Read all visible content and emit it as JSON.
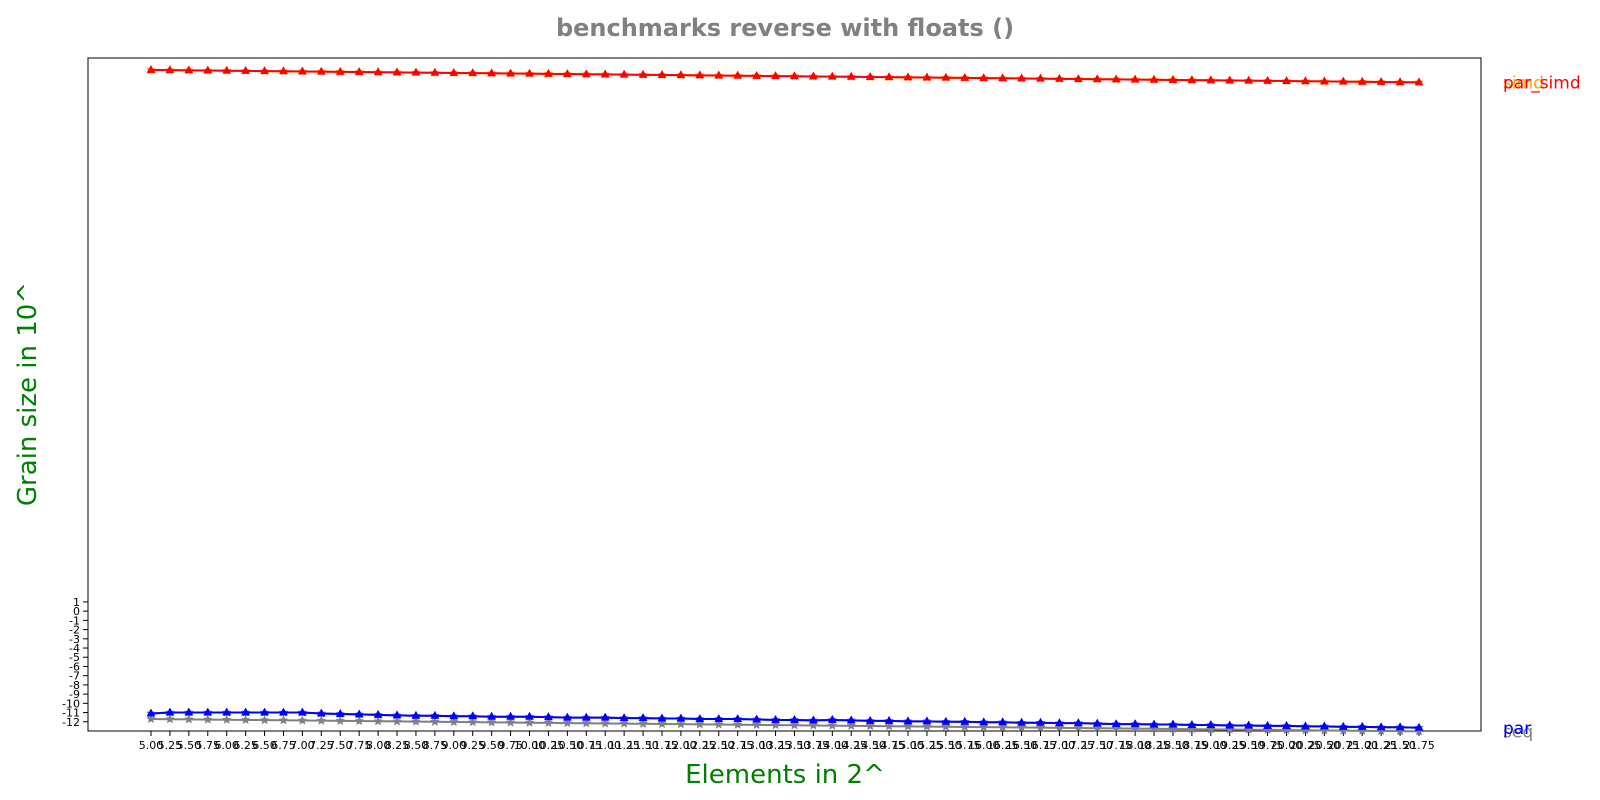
{
  "chart_data": {
    "type": "line",
    "title": "benchmarks reverse with floats  ()",
    "xlabel": "Elements in 2^",
    "ylabel": "Grain size in 10^",
    "x": [
      5.0,
      5.25,
      5.5,
      5.75,
      6.0,
      6.25,
      6.5,
      6.75,
      7.0,
      7.25,
      7.5,
      7.75,
      8.0,
      8.25,
      8.5,
      8.75,
      9.0,
      9.25,
      9.5,
      9.75,
      10.0,
      10.25,
      10.5,
      10.75,
      11.0,
      11.25,
      11.5,
      11.75,
      12.0,
      12.25,
      12.5,
      12.75,
      13.0,
      13.25,
      13.5,
      13.75,
      14.0,
      14.25,
      14.5,
      14.75,
      15.0,
      15.25,
      15.5,
      15.75,
      16.0,
      16.25,
      16.5,
      16.75,
      17.0,
      17.25,
      17.5,
      17.75,
      18.0,
      18.25,
      18.5,
      18.75,
      19.0,
      19.25,
      19.5,
      19.75,
      20.0,
      20.25,
      20.5,
      20.75,
      21.0,
      21.25,
      21.5,
      21.75
    ],
    "xticklabels": [
      "5.00",
      "5.25",
      "5.50",
      "5.75",
      "6.00",
      "6.25",
      "6.50",
      "6.75",
      "7.00",
      "7.25",
      "7.50",
      "7.75",
      "8.00",
      "8.25",
      "8.50",
      "8.75",
      "9.00",
      "9.25",
      "9.50",
      "9.75",
      "10.00",
      "10.25",
      "10.50",
      "10.75",
      "11.00",
      "11.25",
      "11.50",
      "11.75",
      "12.00",
      "12.25",
      "12.50",
      "12.75",
      "13.00",
      "13.25",
      "13.50",
      "13.75",
      "14.00",
      "14.25",
      "14.50",
      "14.75",
      "15.00",
      "15.25",
      "15.50",
      "15.75",
      "16.00",
      "16.25",
      "16.50",
      "16.75",
      "17.00",
      "17.25",
      "17.50",
      "17.75",
      "18.00",
      "18.25",
      "18.50",
      "18.75",
      "19.00",
      "19.25",
      "19.50",
      "19.75",
      "20.00",
      "20.25",
      "20.50",
      "20.75",
      "21.00",
      "21.25",
      "21.50",
      "21.75"
    ],
    "yticklabels": [
      "-12",
      "-11",
      "-10",
      "-9",
      "-8",
      "-7",
      "-6",
      "-5",
      "-4",
      "-3",
      "-2",
      "-1",
      "0",
      "1"
    ],
    "ylim": [
      -13.0,
      60.0
    ],
    "grid": false,
    "series": [
      {
        "name": "seq",
        "color": "#808080",
        "marker": "star",
        "values": [
          -11.7,
          -11.72,
          -11.74,
          -11.76,
          -11.78,
          -11.8,
          -11.82,
          -11.84,
          -11.86,
          -11.88,
          -11.9,
          -11.92,
          -11.94,
          -11.96,
          -11.98,
          -12.0,
          -12.02,
          -12.04,
          -12.06,
          -12.08,
          -12.1,
          -12.12,
          -12.14,
          -12.16,
          -12.18,
          -12.2,
          -12.22,
          -12.24,
          -12.26,
          -12.28,
          -12.3,
          -12.32,
          -12.34,
          -12.36,
          -12.38,
          -12.4,
          -12.42,
          -12.44,
          -12.46,
          -12.48,
          -12.5,
          -12.52,
          -12.54,
          -12.56,
          -12.58,
          -12.6,
          -12.62,
          -12.64,
          -12.66,
          -12.68,
          -12.7,
          -12.72,
          -12.74,
          -12.76,
          -12.78,
          -12.8,
          -12.82,
          -12.84,
          -12.86,
          -12.88,
          -12.9,
          -12.92,
          -12.94,
          -12.96,
          -12.98,
          -13.0,
          -13.02,
          -13.04
        ]
      },
      {
        "name": "par",
        "color": "#6b6bd6",
        "marker": "star",
        "values": [
          -11.1,
          -11.0,
          -11.0,
          -11.0,
          -11.0,
          -11.0,
          -11.0,
          -11.0,
          -11.0,
          -11.1,
          -11.15,
          -11.2,
          -11.25,
          -11.3,
          -11.35,
          -11.35,
          -11.4,
          -11.4,
          -11.45,
          -11.45,
          -11.45,
          -11.5,
          -11.55,
          -11.55,
          -11.55,
          -11.6,
          -11.6,
          -11.65,
          -11.65,
          -11.7,
          -11.7,
          -11.7,
          -11.75,
          -11.8,
          -11.8,
          -11.85,
          -11.8,
          -11.85,
          -11.9,
          -11.9,
          -11.95,
          -11.95,
          -12.0,
          -12.0,
          -12.05,
          -12.05,
          -12.1,
          -12.1,
          -12.15,
          -12.15,
          -12.2,
          -12.25,
          -12.25,
          -12.3,
          -12.3,
          -12.35,
          -12.35,
          -12.4,
          -12.4,
          -12.45,
          -12.45,
          -12.5,
          -12.5,
          -12.55,
          -12.55,
          -12.6,
          -12.6,
          -12.65
        ]
      },
      {
        "name": "simd",
        "color": "#ffa500",
        "marker": "star",
        "values": [
          58.7,
          58.68,
          58.66,
          58.64,
          58.62,
          58.6,
          58.58,
          58.56,
          58.54,
          58.52,
          58.5,
          58.48,
          58.46,
          58.44,
          58.42,
          58.4,
          58.38,
          58.36,
          58.34,
          58.32,
          58.3,
          58.28,
          58.26,
          58.24,
          58.22,
          58.2,
          58.18,
          58.16,
          58.14,
          58.12,
          58.1,
          58.08,
          58.06,
          58.04,
          58.02,
          58.0,
          57.98,
          57.96,
          57.94,
          57.92,
          57.9,
          57.88,
          57.86,
          57.84,
          57.82,
          57.8,
          57.78,
          57.76,
          57.74,
          57.72,
          57.7,
          57.68,
          57.66,
          57.64,
          57.62,
          57.6,
          57.58,
          57.56,
          57.54,
          57.52,
          57.5,
          57.48,
          57.46,
          57.44,
          57.42,
          57.4,
          57.38,
          57.36
        ]
      },
      {
        "name": "par",
        "color": "#0000ff",
        "marker": "triangle",
        "values": [
          -11.1,
          -11.0,
          -11.0,
          -11.0,
          -11.0,
          -11.0,
          -11.0,
          -11.0,
          -11.0,
          -11.1,
          -11.15,
          -11.2,
          -11.25,
          -11.3,
          -11.35,
          -11.35,
          -11.4,
          -11.4,
          -11.45,
          -11.45,
          -11.45,
          -11.5,
          -11.55,
          -11.55,
          -11.55,
          -11.6,
          -11.6,
          -11.65,
          -11.65,
          -11.7,
          -11.7,
          -11.7,
          -11.75,
          -11.8,
          -11.8,
          -11.85,
          -11.8,
          -11.85,
          -11.9,
          -11.9,
          -11.95,
          -11.95,
          -12.0,
          -12.0,
          -12.05,
          -12.05,
          -12.1,
          -12.1,
          -12.15,
          -12.15,
          -12.2,
          -12.25,
          -12.25,
          -12.3,
          -12.3,
          -12.35,
          -12.35,
          -12.4,
          -12.4,
          -12.45,
          -12.45,
          -12.5,
          -12.5,
          -12.55,
          -12.55,
          -12.6,
          -12.6,
          -12.65
        ]
      },
      {
        "name": "par_simd",
        "color": "#ff0000",
        "marker": "triangle",
        "values": [
          58.7,
          58.68,
          58.66,
          58.64,
          58.62,
          58.6,
          58.58,
          58.56,
          58.54,
          58.52,
          58.5,
          58.48,
          58.46,
          58.44,
          58.42,
          58.4,
          58.38,
          58.36,
          58.34,
          58.32,
          58.3,
          58.28,
          58.26,
          58.24,
          58.22,
          58.2,
          58.18,
          58.16,
          58.14,
          58.12,
          58.1,
          58.08,
          58.06,
          58.04,
          58.02,
          58.0,
          57.98,
          57.96,
          57.94,
          57.92,
          57.9,
          57.88,
          57.86,
          57.84,
          57.82,
          57.8,
          57.78,
          57.76,
          57.74,
          57.72,
          57.7,
          57.68,
          57.66,
          57.64,
          57.62,
          57.6,
          57.58,
          57.56,
          57.54,
          57.52,
          57.5,
          57.48,
          57.46,
          57.44,
          57.42,
          57.4,
          57.38,
          57.36
        ]
      }
    ]
  }
}
